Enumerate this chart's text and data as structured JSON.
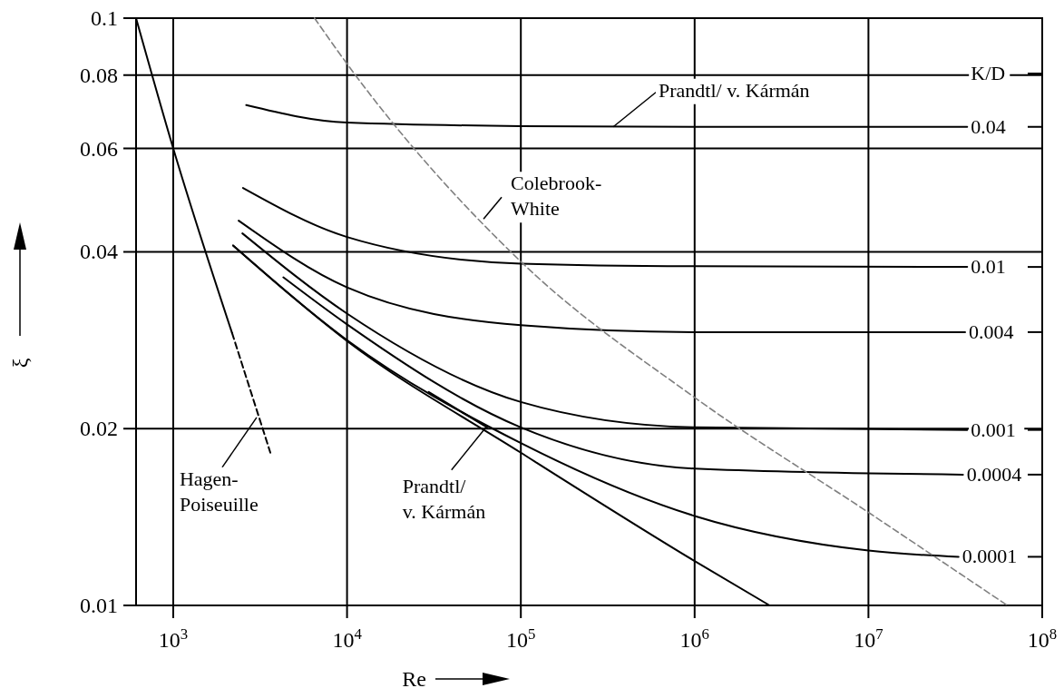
{
  "chart_data": {
    "type": "line",
    "xlabel": "Re",
    "ylabel": "ξ",
    "legend_title": "K/D",
    "legend": "right",
    "log": "xy",
    "grid": true,
    "xlim": [
      611,
      100000000
    ],
    "ylim": [
      0.01,
      0.1
    ],
    "xticks": [
      {
        "value": 1000,
        "label": "10$^{3}$"
      },
      {
        "value": 10000,
        "label": "10$^{4}$"
      },
      {
        "value": 100000,
        "label": "10$^{5}$"
      },
      {
        "value": 1000000,
        "label": "10$^{6}$"
      },
      {
        "value": 10000000,
        "label": "10$^{7}$"
      },
      {
        "value": 100000000,
        "label": "10$^{8}$"
      }
    ],
    "yticks": [
      0.01,
      0.02,
      0.04,
      0.06,
      0.08,
      0.1
    ],
    "series": [
      {
        "name": "0.04",
        "color": "#000000",
        "x": [
          2630,
          10000,
          100000,
          1000000,
          37000000
        ],
        "values": [
          0.0711,
          0.0664,
          0.0655,
          0.0653,
          0.0653
        ]
      },
      {
        "name": "0.01",
        "color": "#000000",
        "x": [
          2520,
          10000,
          100000,
          1000000,
          37000000
        ],
        "values": [
          0.0514,
          0.0424,
          0.0382,
          0.0378,
          0.0377
        ]
      },
      {
        "name": "0.004",
        "color": "#000000",
        "x": [
          2380,
          10000,
          100000,
          1000000,
          36000000
        ],
        "values": [
          0.0452,
          0.0348,
          0.03,
          0.0292,
          0.0292
        ]
      },
      {
        "name": "0.001",
        "color": "#000000",
        "x": [
          2500,
          10000,
          100000,
          1000000,
          37000000
        ],
        "values": [
          0.043,
          0.0314,
          0.0222,
          0.0201,
          0.0199
        ]
      },
      {
        "name": "0.0004",
        "color": "#000000",
        "x": [
          4300,
          10000,
          100000,
          1000000,
          35000000
        ],
        "values": [
          0.0362,
          0.0301,
          0.0201,
          0.0171,
          0.0167
        ]
      },
      {
        "name": "0.0001",
        "color": "#000000",
        "x": [
          2210,
          10000,
          100000,
          1000000,
          10000000,
          33000000
        ],
        "values": [
          0.041,
          0.0283,
          0.0189,
          0.0142,
          0.0124,
          0.0121
        ]
      },
      {
        "color": "#000000",
        "x": [
          2210,
          10000,
          100000,
          1000000,
          2700000
        ],
        "values": [
          0.041,
          0.0282,
          0.0182,
          0.0119,
          0.01
        ]
      },
      {
        "color": "#000000",
        "x": [
          29500,
          64000
        ],
        "values": [
          0.0231,
          0.0201
        ]
      },
      {
        "color": "#000000",
        "x": [
          611,
          1000,
          2180
        ],
        "values": [
          0.1,
          0.06,
          0.0291
        ]
      },
      {
        "color": "#000000",
        "line_style": "dashed",
        "x": [
          2180,
          3620
        ],
        "values": [
          0.0291,
          0.0182
        ]
      },
      {
        "color": "#808080",
        "line_style": "dashed",
        "x": [
          6500,
          10000,
          100000,
          1000000,
          10000000,
          63000000
        ],
        "values": [
          0.1,
          0.0836,
          0.0385,
          0.0226,
          0.0144,
          0.01
        ]
      }
    ],
    "annotations": [
      {
        "text": "Prandtl/ v. Kármán",
        "x": 340000,
        "y": 0.0653
      },
      {
        "text": "Colebrook-\nWhite",
        "x": 61000,
        "y": 0.0455
      },
      {
        "text": "Hagen-\nPoiseuille",
        "x": 3020,
        "y": 0.0209
      },
      {
        "text": "Prandtl/\nv. Kármán",
        "x": 63000,
        "y": 0.0201
      }
    ]
  }
}
